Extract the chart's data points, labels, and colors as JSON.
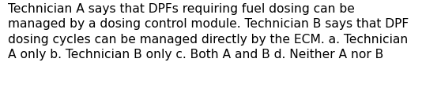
{
  "line1": "Technician A says that DPFs requiring fuel dosing can be",
  "line2": "managed by a dosing control module. Technician B says that DPF",
  "line3": "dosing cycles can be managed directly by the ECM. a. Technician",
  "line4": "A only b. Technician B only c. Both A and B d. Neither A nor B",
  "background_color": "#ffffff",
  "text_color": "#000000",
  "font_size": 11.2,
  "fig_width": 5.58,
  "fig_height": 1.26,
  "dpi": 100,
  "linespacing": 1.38
}
